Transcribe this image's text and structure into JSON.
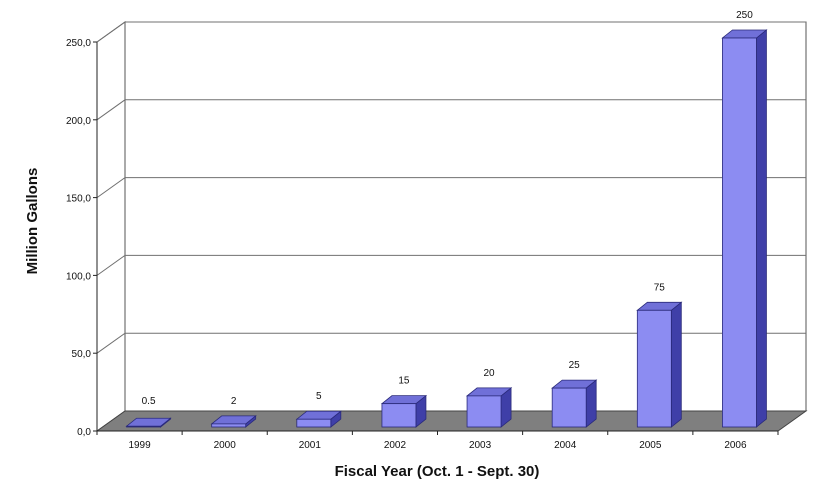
{
  "chart_data": {
    "type": "bar",
    "categories": [
      "1999",
      "2000",
      "2001",
      "2002",
      "2003",
      "2004",
      "2005",
      "2006"
    ],
    "values": [
      0.5,
      2,
      5,
      15,
      20,
      25,
      75,
      250
    ],
    "data_labels": [
      "0.5",
      "2",
      "5",
      "15",
      "20",
      "25",
      "75",
      "250"
    ],
    "title": "",
    "xlabel": "Fiscal Year (Oct. 1 - Sept. 30)",
    "ylabel": "Million Gallons",
    "ylim": [
      0,
      250
    ],
    "yticks": [
      "0,0",
      "50,0",
      "100,0",
      "150,0",
      "200,0",
      "250,0"
    ],
    "grid": true,
    "legend": "none",
    "style": "3d-bar",
    "colors": {
      "bar_front": "#8c8cf2",
      "bar_top": "#7070d8",
      "bar_side": "#3f3fa8",
      "floor": "#7f7f7f",
      "grid": "#707070"
    }
  }
}
